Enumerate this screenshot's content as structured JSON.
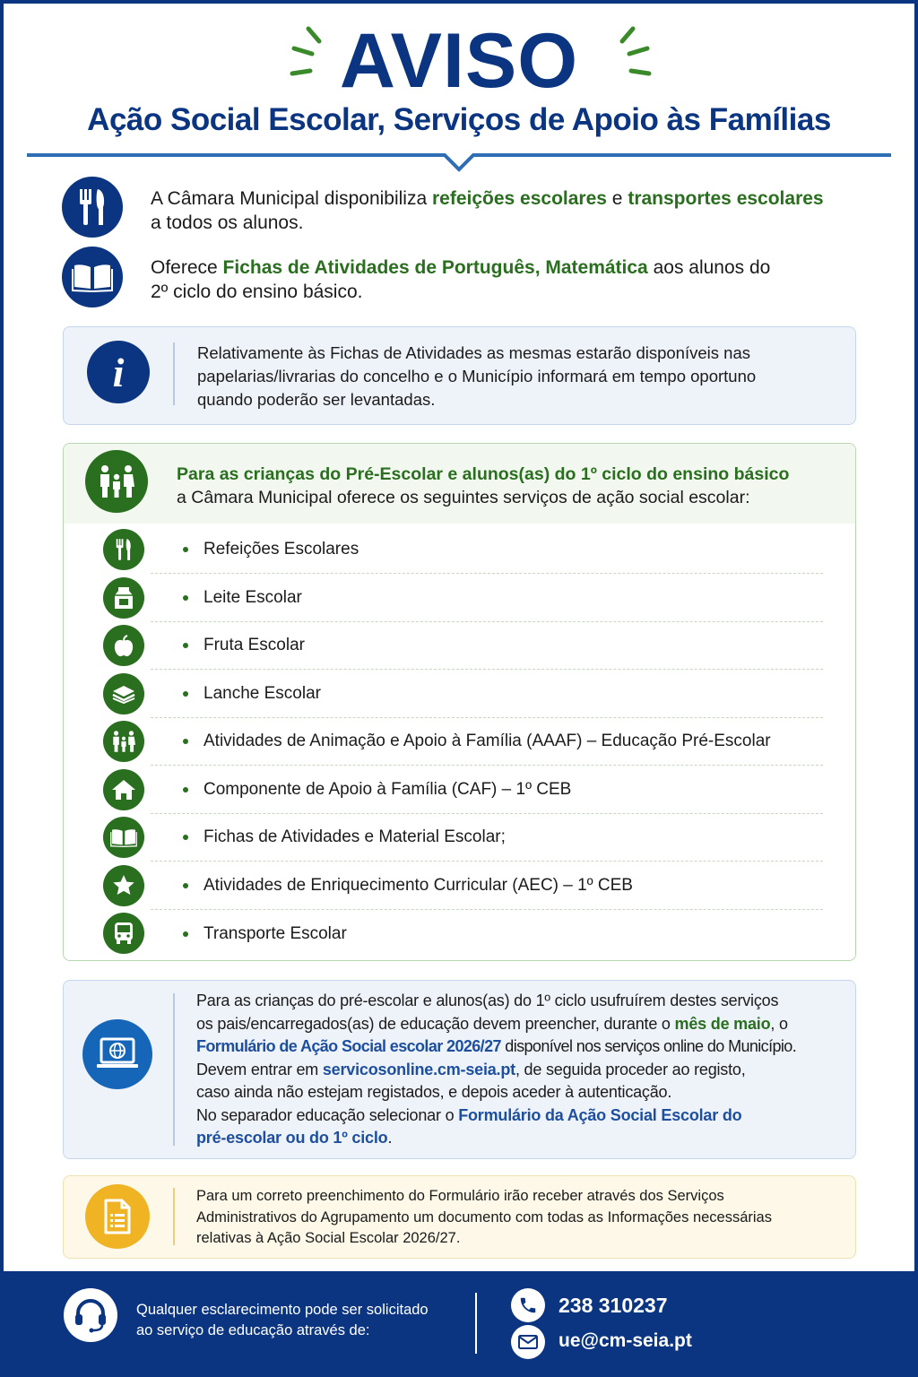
{
  "header": {
    "title": "AVISO",
    "subtitle": "Ação Social Escolar, Serviços de Apoio às Famílias"
  },
  "intro": [
    {
      "icon": "fork-knife-icon",
      "parts": [
        "A Câmara Municipal disponibiliza ",
        "refeições escolares",
        " e ",
        "transportes escolares",
        "a todos os alunos."
      ]
    },
    {
      "icon": "book-icon",
      "parts": [
        "Oferece ",
        "Fichas de Atividades de Português, Matemática",
        " aos alunos do",
        "2º ciclo do ensino básico."
      ]
    }
  ],
  "info_box": {
    "icon": "info-icon",
    "lines": [
      "Relativamente às Fichas de Atividades as mesmas estarão disponíveis nas",
      "papelarias/livrarias do concelho e o Município informará em tempo oportuno",
      "quando poderão ser levantadas."
    ]
  },
  "services": {
    "icon": "family-icon",
    "heading": "Para as crianças do  Pré-Escolar e alunos(as) do 1º ciclo do ensino básico",
    "subheading": "a Câmara Municipal oferece os seguintes serviços de ação social escolar:",
    "items": [
      {
        "label": "Refeições Escolares",
        "icon": "fork-knife-icon"
      },
      {
        "label": "Leite Escolar",
        "icon": "milk-carton-icon"
      },
      {
        "label": "Fruta Escolar",
        "icon": "apple-icon"
      },
      {
        "label": "Lanche Escolar",
        "icon": "sandwich-icon"
      },
      {
        "label": "Atividades de Animação e Apoio à Família (AAAF) – Educação Pré-Escolar",
        "icon": "family-icon"
      },
      {
        "label": "Componente de Apoio à Família (CAF) – 1º CEB",
        "icon": "house-icon"
      },
      {
        "label": "Fichas de Atividades e Material Escolar;",
        "icon": "book-icon"
      },
      {
        "label": "Atividades de Enriquecimento Curricular (AEC) – 1º CEB",
        "icon": "star-icon"
      },
      {
        "label": "Transporte Escolar",
        "icon": "bus-icon"
      }
    ]
  },
  "online_box": {
    "icon": "laptop-globe-icon",
    "l1": "Para as crianças do pré-escolar e alunos(as) do 1º ciclo usufruírem destes serviços",
    "l2a": "os pais/encarregados(as) de educação devem preencher, durante o ",
    "l2b": "mês de maio",
    ",l2c": "",
    "l2c": ", o",
    "l3a": "Formulário de Ação Social escolar 2026/27",
    "l3b": " disponível nos serviços online do Município.",
    "l4a": "Devem entrar em ",
    "l4b": "servicosonline.cm-seia.pt",
    "l4c": ", de seguida proceder ao registo,",
    "l5": "caso ainda não estejam registados, e depois aceder à autenticação.",
    "l6a": "No separador educação selecionar o ",
    "l6b": "Formulário da Ação Social Escolar do",
    "l7": "pré-escolar ou do 1º ciclo",
    "l7b": "."
  },
  "note_box": {
    "icon": "document-icon",
    "lines": [
      "Para um correto preenchimento do Formulário irão receber através dos Serviços",
      "Administrativos do Agrupamento um documento com todas as Informações necessárias",
      "relativas à Ação Social Escolar  2026/27."
    ]
  },
  "footer": {
    "lines": [
      "Qualquer  esclarecimento pode ser solicitado",
      "ao serviço de educação através de:"
    ],
    "phone": "238 310237",
    "email": "ue@cm-seia.pt"
  },
  "colors": {
    "navy": "#0b3580",
    "green": "#2a6e1f",
    "blue": "#1565b8",
    "yellow": "#f0b323"
  }
}
